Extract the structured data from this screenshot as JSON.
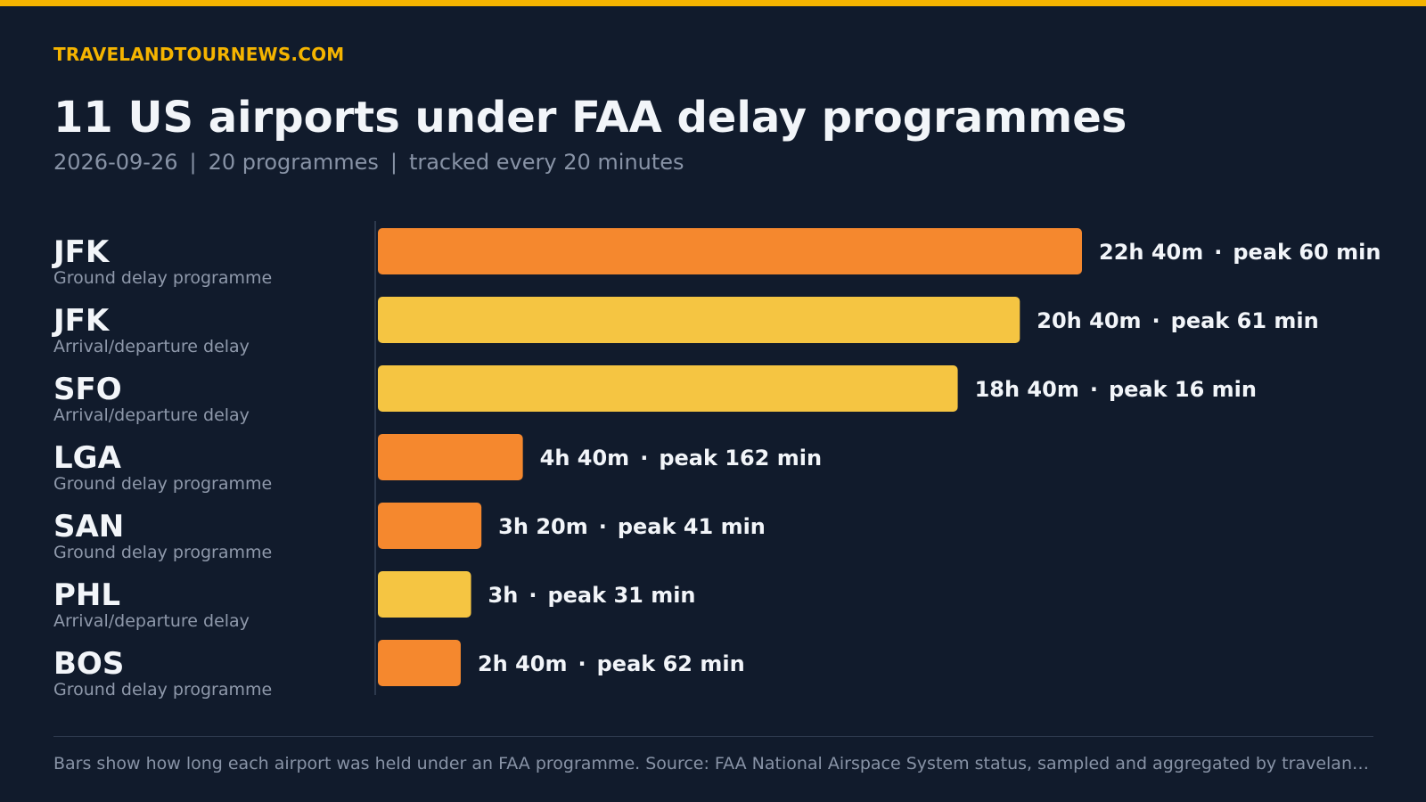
{
  "site": "TRAVELANDTOURNEWS.COM",
  "headline": "11 US airports under FAA delay programmes",
  "subtitle": {
    "date": "2026-09-26",
    "programmes": "20 programmes",
    "cadence": "tracked every 20 minutes",
    "separator": "|"
  },
  "footnote": "Bars show how long each airport was held under an FAA programme. Source: FAA National Airspace System status, sampled and aggregated by travelandtourn…",
  "colors": {
    "background": "#111b2c",
    "accent": "#f5b400",
    "ground_delay_programme": "#f5882e",
    "arrival_departure_delay": "#f5c542"
  },
  "chart_data": {
    "type": "bar",
    "orientation": "horizontal",
    "value_unit": "minutes",
    "xlim": [
      0,
      1360
    ],
    "categories": [
      "JFK",
      "JFK",
      "SFO",
      "LGA",
      "SAN",
      "PHL",
      "BOS"
    ],
    "rows": [
      {
        "code": "JFK",
        "program": "Ground delay programme",
        "kind": "ground_delay_programme",
        "duration_min": 1360,
        "duration_label": "22h 40m",
        "peak_label": "peak 60 min"
      },
      {
        "code": "JFK",
        "program": "Arrival/departure delay",
        "kind": "arrival_departure_delay",
        "duration_min": 1240,
        "duration_label": "20h 40m",
        "peak_label": "peak 61 min"
      },
      {
        "code": "SFO",
        "program": "Arrival/departure delay",
        "kind": "arrival_departure_delay",
        "duration_min": 1120,
        "duration_label": "18h 40m",
        "peak_label": "peak 16 min"
      },
      {
        "code": "LGA",
        "program": "Ground delay programme",
        "kind": "ground_delay_programme",
        "duration_min": 280,
        "duration_label": "4h 40m",
        "peak_label": "peak 162 min"
      },
      {
        "code": "SAN",
        "program": "Ground delay programme",
        "kind": "ground_delay_programme",
        "duration_min": 200,
        "duration_label": "3h 20m",
        "peak_label": "peak 41 min"
      },
      {
        "code": "PHL",
        "program": "Arrival/departure delay",
        "kind": "arrival_departure_delay",
        "duration_min": 180,
        "duration_label": "3h",
        "peak_label": "peak 31 min"
      },
      {
        "code": "BOS",
        "program": "Ground delay programme",
        "kind": "ground_delay_programme",
        "duration_min": 160,
        "duration_label": "2h 40m",
        "peak_label": "peak 62 min"
      }
    ]
  }
}
